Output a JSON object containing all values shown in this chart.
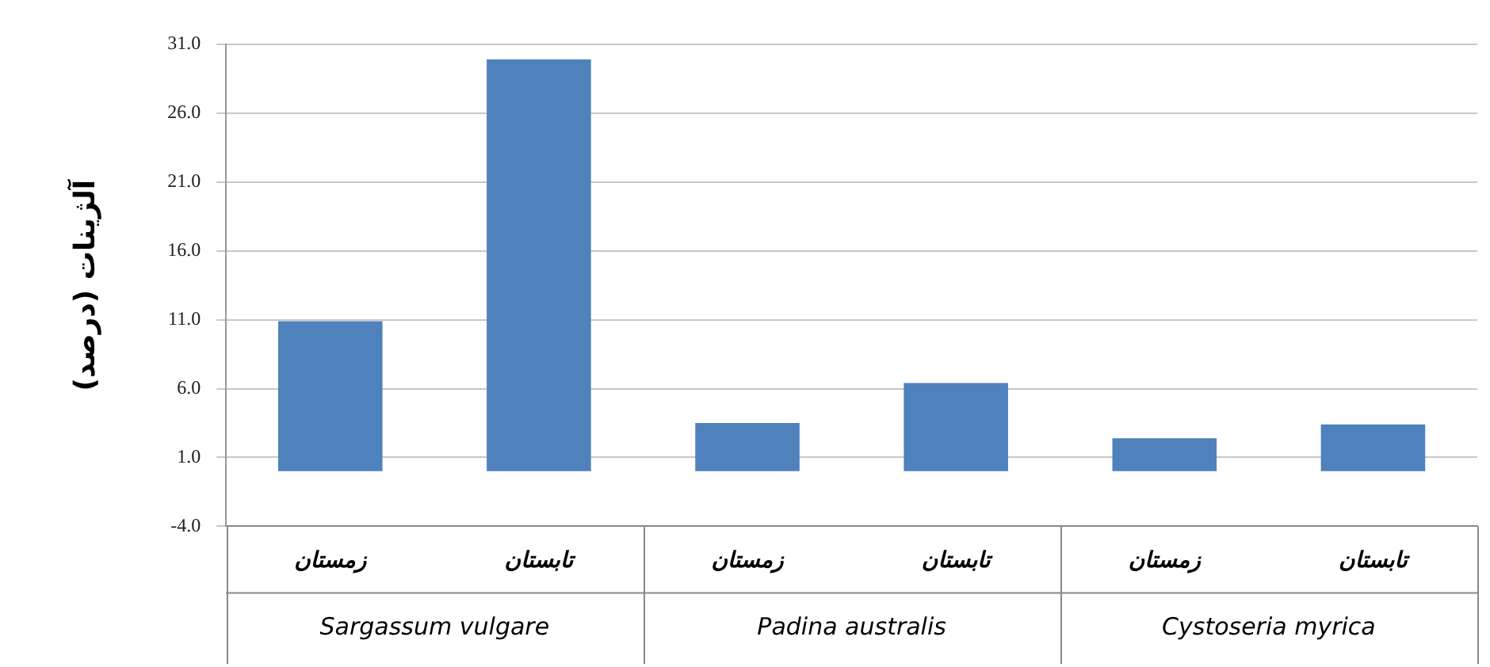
{
  "chart_data": {
    "type": "bar",
    "ylabel": "آلژینات (درصد)",
    "categories": [
      "زمستان",
      "تابستان",
      "زمستان",
      "تابستان",
      "زمستان",
      "تابستان"
    ],
    "values": [
      10.9,
      29.9,
      3.5,
      6.4,
      2.4,
      3.4
    ],
    "color": "#4f81bd",
    "ylim": [
      -4,
      31
    ],
    "yticks": [
      {
        "value": -4,
        "label": "-4.0"
      },
      {
        "value": 1,
        "label": "1.0"
      },
      {
        "value": 6,
        "label": "6.0"
      },
      {
        "value": 11,
        "label": "11.0"
      },
      {
        "value": 16,
        "label": "16.0"
      },
      {
        "value": 21,
        "label": "21.0"
      },
      {
        "value": 26,
        "label": "26.0"
      },
      {
        "value": 31,
        "label": "31.0"
      }
    ],
    "grid": "y",
    "annotations": [
      "Sargassum vulgare",
      "Padina australis",
      "Cystoseria myrica"
    ]
  }
}
